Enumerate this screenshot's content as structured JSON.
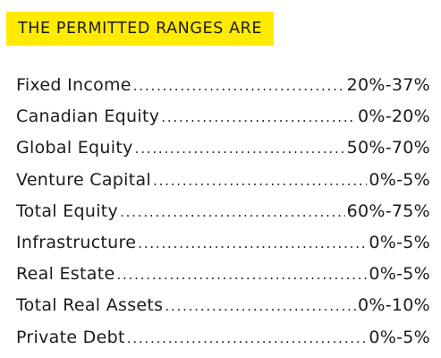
{
  "heading": "THE PERMITTED RANGES ARE",
  "colors": {
    "highlight": "#ffeb00",
    "text": "#1b1b1b"
  },
  "ranges": [
    {
      "label": "Fixed Income",
      "value": "20%-37%"
    },
    {
      "label": "Canadian Equity",
      "value": "0%-20%"
    },
    {
      "label": "Global Equity",
      "value": "50%-70%"
    },
    {
      "label": "Venture Capital",
      "value": "0%-5%"
    },
    {
      "label": "Total Equity",
      "value": "60%-75%"
    },
    {
      "label": "Infrastructure",
      "value": "0%-5%"
    },
    {
      "label": "Real Estate",
      "value": "0%-5%"
    },
    {
      "label": "Total Real Assets",
      "value": "0%-10%"
    },
    {
      "label": "Private Debt",
      "value": "0%-5%"
    }
  ]
}
